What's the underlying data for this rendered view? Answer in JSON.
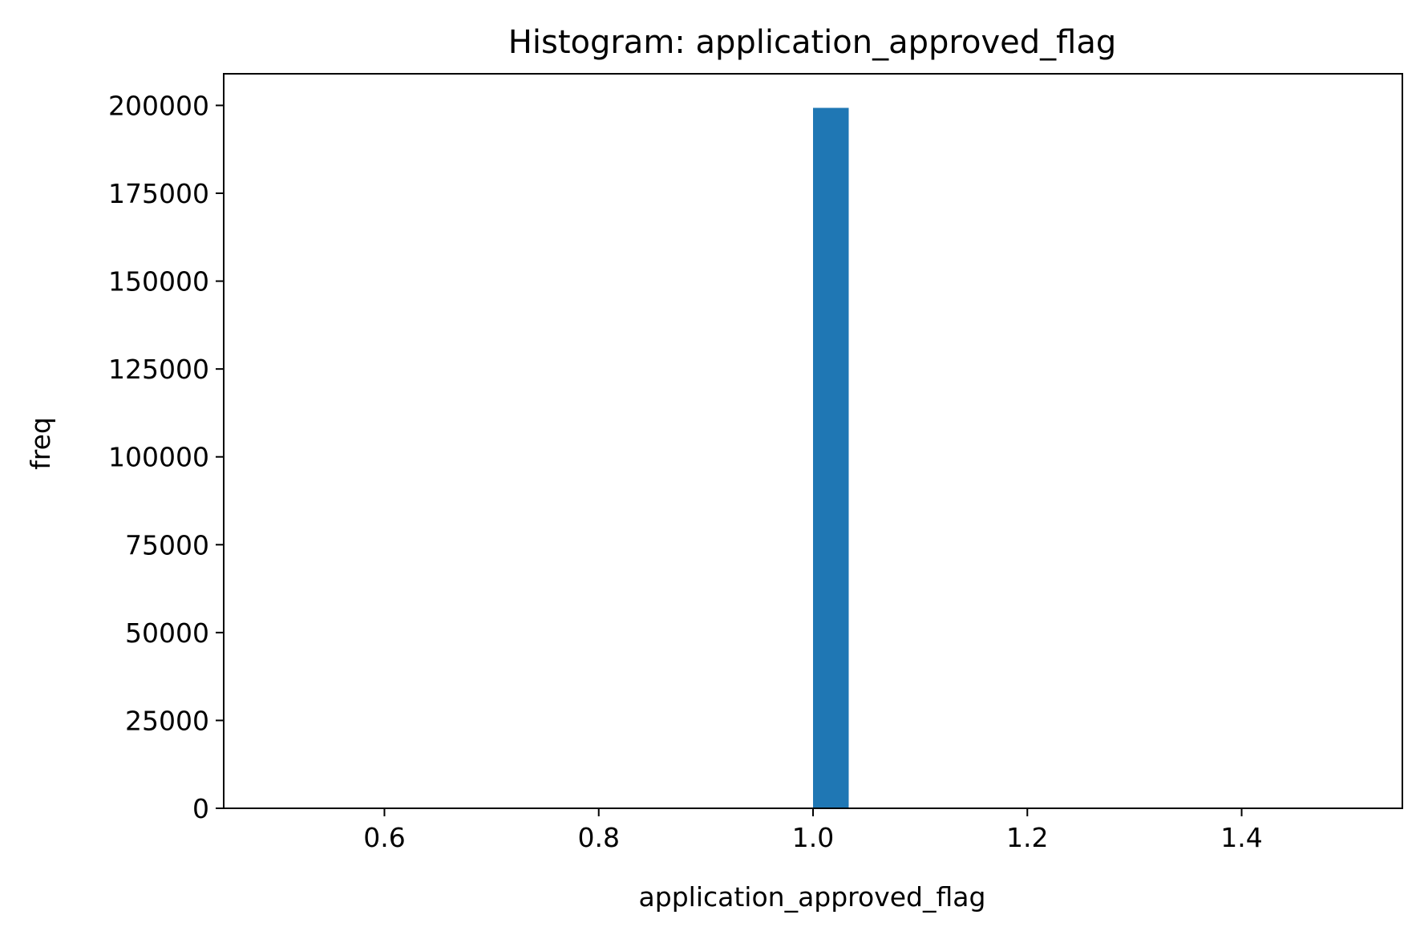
{
  "chart_data": {
    "type": "bar",
    "title": "Histogram: application_approved_flag",
    "xlabel": "application_approved_flag",
    "ylabel": "freq",
    "xlim": [
      0.45,
      1.55
    ],
    "ylim": [
      0,
      209000
    ],
    "x_ticks": [
      0.6,
      0.8,
      1.0,
      1.2,
      1.4
    ],
    "x_tick_labels": [
      "0.6",
      "0.8",
      "1.0",
      "1.2",
      "1.4"
    ],
    "y_ticks": [
      0,
      25000,
      50000,
      75000,
      100000,
      125000,
      150000,
      175000,
      200000
    ],
    "y_tick_labels": [
      "0",
      "25000",
      "50000",
      "75000",
      "100000",
      "125000",
      "150000",
      "175000",
      "200000"
    ],
    "bins": [
      {
        "x0": 1.0,
        "x1": 1.0333,
        "value": 199300
      }
    ],
    "bar_color": "#1f77b4",
    "grid": false,
    "legend": "none"
  }
}
